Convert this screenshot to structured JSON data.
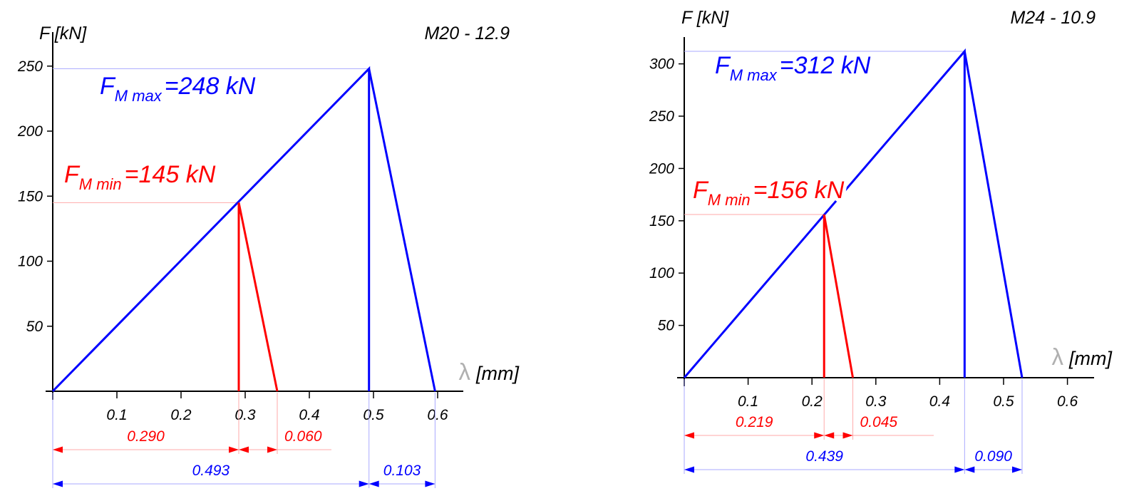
{
  "chart_data": [
    {
      "type": "line",
      "title": "M20 - 12.9",
      "ylabel": "F [kN]",
      "xlabel_symbol": "λ",
      "xlabel_unit": "[mm]",
      "xlim": [
        0,
        0.65
      ],
      "ylim": [
        0,
        270
      ],
      "x_ticks": [
        "0.1",
        "0.2",
        "0.3",
        "0.4",
        "0.5",
        "0.6"
      ],
      "y_ticks": [
        "50",
        "100",
        "150",
        "200",
        "250"
      ],
      "grid": false,
      "series": [
        {
          "name": "F_M max",
          "color": "#0000ff",
          "points": [
            [
              0,
              0
            ],
            [
              0.493,
              248
            ],
            [
              0.493,
              0
            ]
          ],
          "drop": [
            [
              0.493,
              248
            ],
            [
              0.596,
              0
            ]
          ]
        },
        {
          "name": "F_M min",
          "color": "#ff0000",
          "points": [
            [
              0.29,
              145
            ],
            [
              0.29,
              0
            ]
          ],
          "drop": [
            [
              0.29,
              145
            ],
            [
              0.35,
              0
            ]
          ]
        }
      ],
      "annotations": {
        "max": {
          "F": "F",
          "sub": "M max",
          "value": "=248 kN"
        },
        "min": {
          "F": "F",
          "sub": "M min",
          "value": "=145 kN"
        }
      },
      "dimensions": {
        "red": [
          {
            "from": 0,
            "to": 0.29,
            "label": "0.290"
          },
          {
            "from": 0.29,
            "to": 0.35,
            "label": "0.060"
          }
        ],
        "blue": [
          {
            "from": 0,
            "to": 0.493,
            "label": "0.493"
          },
          {
            "from": 0.493,
            "to": 0.596,
            "label": "0.103"
          }
        ]
      }
    },
    {
      "type": "line",
      "title": "M24 - 10.9",
      "ylabel": "F [kN]",
      "xlabel_symbol": "λ",
      "xlabel_unit": "[mm]",
      "xlim": [
        0,
        0.65
      ],
      "ylim": [
        0,
        325
      ],
      "x_ticks": [
        "0.1",
        "0.2",
        "0.3",
        "0.4",
        "0.5",
        "0.6"
      ],
      "y_ticks": [
        "50",
        "100",
        "150",
        "200",
        "250",
        "300"
      ],
      "grid": false,
      "series": [
        {
          "name": "F_M max",
          "color": "#0000ff",
          "points": [
            [
              0,
              0
            ],
            [
              0.439,
              312
            ],
            [
              0.439,
              0
            ]
          ],
          "drop": [
            [
              0.439,
              312
            ],
            [
              0.529,
              0
            ]
          ]
        },
        {
          "name": "F_M min",
          "color": "#ff0000",
          "points": [
            [
              0.219,
              156
            ],
            [
              0.219,
              0
            ]
          ],
          "drop": [
            [
              0.219,
              156
            ],
            [
              0.264,
              0
            ]
          ]
        }
      ],
      "annotations": {
        "max": {
          "F": "F",
          "sub": "M max",
          "value": "=312 kN"
        },
        "min": {
          "F": "F",
          "sub": "M min",
          "value": "=156 kN"
        }
      },
      "dimensions": {
        "red": [
          {
            "from": 0,
            "to": 0.219,
            "label": "0.219"
          },
          {
            "from": 0.219,
            "to": 0.264,
            "label": "0.045"
          }
        ],
        "blue": [
          {
            "from": 0,
            "to": 0.439,
            "label": "0.439"
          },
          {
            "from": 0.439,
            "to": 0.529,
            "label": "0.090"
          }
        ]
      }
    }
  ]
}
